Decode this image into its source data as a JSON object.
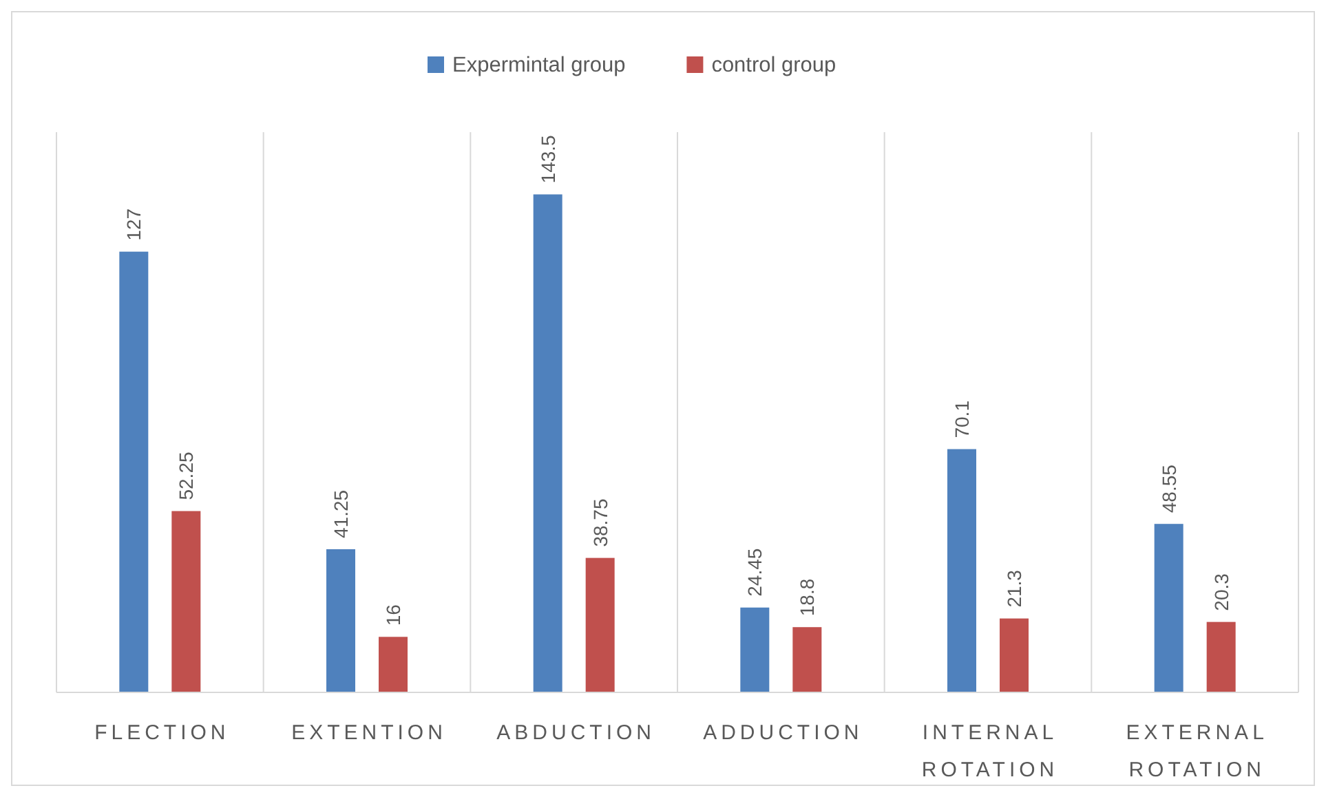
{
  "chart_data": {
    "type": "bar",
    "categories": [
      "FLECTION",
      "EXTENTION",
      "ABDUCTION",
      "ADDUCTION",
      "INTERNAL ROTATION",
      "EXTERNAL ROTATION"
    ],
    "series": [
      {
        "name": "Expermintal group",
        "color": "#4f81bd",
        "values": [
          127,
          41.25,
          143.5,
          24.45,
          70.1,
          48.55
        ]
      },
      {
        "name": "control group",
        "color": "#c0504d",
        "values": [
          52.25,
          16,
          38.75,
          18.8,
          21.3,
          20.3
        ]
      }
    ],
    "data_labels": true,
    "grid": "x",
    "legend": "top"
  }
}
